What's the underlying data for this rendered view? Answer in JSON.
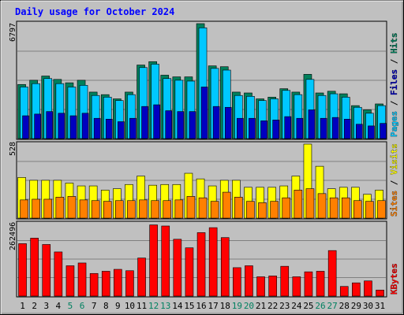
{
  "chart_data": [
    {
      "type": "bar",
      "panel": "top",
      "title": "Daily usage for October 2024",
      "categories": [
        "1",
        "2",
        "3",
        "4",
        "5",
        "6",
        "7",
        "8",
        "9",
        "10",
        "11",
        "12",
        "13",
        "14",
        "15",
        "16",
        "17",
        "18",
        "19",
        "20",
        "21",
        "22",
        "23",
        "24",
        "25",
        "26",
        "27",
        "28",
        "29",
        "30",
        "31"
      ],
      "weekend_days": [
        "5",
        "6",
        "12",
        "13",
        "19",
        "20",
        "26",
        "27"
      ],
      "y_max_label": "6797",
      "ylim": [
        0,
        6797
      ],
      "grid": true,
      "legend": [
        "Pages",
        "Files",
        "Hits"
      ],
      "series": [
        {
          "name": "Hits",
          "color": "#00805c",
          "values": [
            3200,
            3450,
            3700,
            3500,
            3300,
            3450,
            2750,
            2600,
            2350,
            2750,
            4350,
            4550,
            3750,
            3650,
            3650,
            6797,
            4300,
            4250,
            2750,
            2700,
            2350,
            2450,
            2950,
            2750,
            3800,
            2700,
            2800,
            2650,
            1950,
            1700,
            2050
          ]
        },
        {
          "name": "Files",
          "color": "#00c8ff",
          "values": [
            3050,
            3250,
            3550,
            3250,
            3050,
            3150,
            2550,
            2450,
            2250,
            2600,
            4200,
            4400,
            3550,
            3450,
            3400,
            6550,
            4150,
            4050,
            2550,
            2500,
            2250,
            2350,
            2850,
            2600,
            3500,
            2550,
            2650,
            2450,
            1850,
            1500,
            1950
          ]
        },
        {
          "name": "Pages",
          "color": "#0000c0",
          "values": [
            1350,
            1450,
            1600,
            1500,
            1350,
            1500,
            1200,
            1150,
            1000,
            1200,
            1900,
            2000,
            1650,
            1600,
            1600,
            3050,
            1900,
            1850,
            1200,
            1200,
            1050,
            1100,
            1300,
            1200,
            1700,
            1200,
            1250,
            1150,
            850,
            750,
            900
          ]
        }
      ]
    },
    {
      "type": "bar",
      "panel": "middle",
      "categories": [
        "1",
        "2",
        "3",
        "4",
        "5",
        "6",
        "7",
        "8",
        "9",
        "10",
        "11",
        "12",
        "13",
        "14",
        "15",
        "16",
        "17",
        "18",
        "19",
        "20",
        "21",
        "22",
        "23",
        "24",
        "25",
        "26",
        "27",
        "28",
        "29",
        "30",
        "31"
      ],
      "y_max_label": "528",
      "ylim": [
        0,
        528
      ],
      "grid": true,
      "legend": [
        "Sites",
        "Visits"
      ],
      "series": [
        {
          "name": "Visits",
          "color": "#ffff00",
          "values": [
            290,
            270,
            270,
            270,
            250,
            230,
            230,
            200,
            210,
            240,
            300,
            235,
            240,
            240,
            320,
            280,
            230,
            270,
            270,
            220,
            220,
            220,
            230,
            300,
            528,
            370,
            210,
            220,
            220,
            170,
            200
          ]
        },
        {
          "name": "Sites",
          "color": "#ff8000",
          "values": [
            130,
            135,
            135,
            150,
            155,
            130,
            125,
            120,
            125,
            125,
            130,
            125,
            125,
            130,
            155,
            145,
            120,
            185,
            150,
            120,
            110,
            120,
            145,
            200,
            210,
            175,
            145,
            145,
            125,
            120,
            125
          ]
        }
      ]
    },
    {
      "type": "bar",
      "panel": "bottom",
      "categories": [
        "1",
        "2",
        "3",
        "4",
        "5",
        "6",
        "7",
        "8",
        "9",
        "10",
        "11",
        "12",
        "13",
        "14",
        "15",
        "16",
        "17",
        "18",
        "19",
        "20",
        "21",
        "22",
        "23",
        "24",
        "25",
        "26",
        "27",
        "28",
        "29",
        "30",
        "31"
      ],
      "y_max_label": "262496",
      "ylim": [
        0,
        262496
      ],
      "grid": true,
      "legend": [
        "KBytes"
      ],
      "series": [
        {
          "name": "KBytes",
          "color": "#ff0000",
          "values": [
            190000,
            210000,
            187000,
            160000,
            110000,
            120000,
            82000,
            90000,
            97000,
            92000,
            138000,
            258000,
            254000,
            206000,
            175000,
            230000,
            248000,
            212000,
            103000,
            110000,
            70000,
            73000,
            108000,
            70000,
            88000,
            90000,
            165000,
            35000,
            48000,
            55000,
            22000
          ]
        }
      ]
    }
  ]
}
